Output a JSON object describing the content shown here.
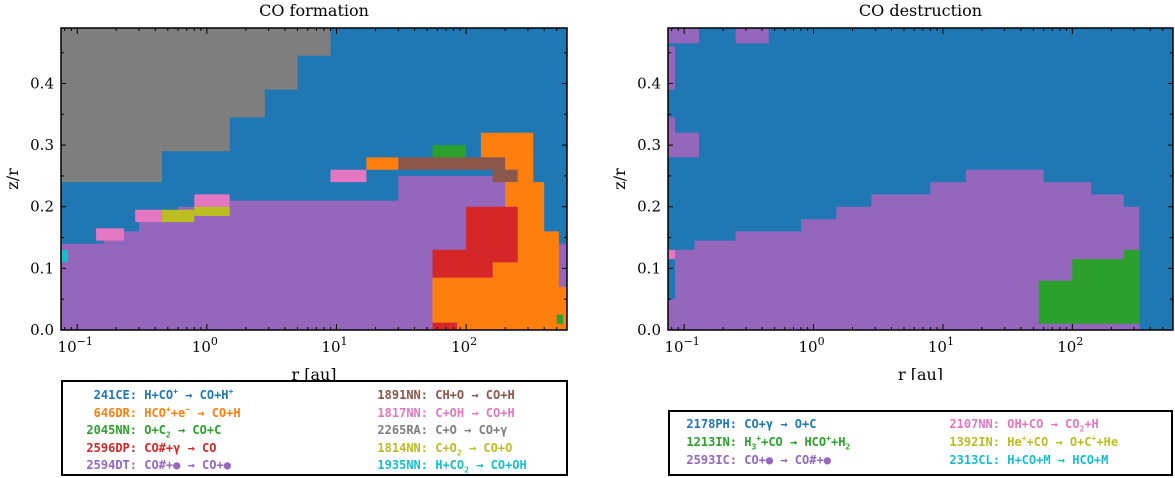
{
  "palette": {
    "blue": "#1f77b4",
    "orange": "#ff7f0e",
    "green": "#2ca02c",
    "red": "#d62728",
    "purple": "#9467bd",
    "brown": "#8c564b",
    "pink": "#e377c2",
    "gray": "#7f7f7f",
    "olive": "#bcbd22",
    "cyan": "#17becf"
  },
  "chart_data": [
    {
      "type": "heatmap",
      "title": "CO formation",
      "xlabel": "r [au]",
      "ylabel": "z/r",
      "xscale": "log",
      "xlim": [
        0.075,
        600
      ],
      "ylim": [
        0,
        0.49
      ],
      "xticks": [
        {
          "value": 0.1,
          "base": "10",
          "exp": "−1"
        },
        {
          "value": 1,
          "base": "10",
          "exp": "0"
        },
        {
          "value": 10,
          "base": "10",
          "exp": "1"
        },
        {
          "value": 100,
          "base": "10",
          "exp": "2"
        }
      ],
      "yticks": [
        "0.0",
        "0.1",
        "0.2",
        "0.3",
        "0.4"
      ],
      "background": "blue",
      "regions": [
        {
          "color": "gray",
          "poly": [
            [
              0.075,
              0.49
            ],
            [
              9,
              0.49
            ],
            [
              9,
              0.445
            ],
            [
              5,
              0.445
            ],
            [
              5,
              0.39
            ],
            [
              2.8,
              0.39
            ],
            [
              2.8,
              0.345
            ],
            [
              1.5,
              0.345
            ],
            [
              1.5,
              0.29
            ],
            [
              0.45,
              0.29
            ],
            [
              0.45,
              0.24
            ],
            [
              0.14,
              0.24
            ],
            [
              0.14,
              0.24
            ],
            [
              0.075,
              0.24
            ]
          ]
        },
        {
          "color": "purple",
          "poly": [
            [
              0.075,
              0
            ],
            [
              600,
              0
            ],
            [
              600,
              0.14
            ],
            [
              0.075,
              0.14
            ]
          ]
        },
        {
          "color": "purple",
          "poly": [
            [
              0.075,
              0.14
            ],
            [
              0.16,
              0.14
            ],
            [
              0.16,
              0.16
            ],
            [
              0.3,
              0.16
            ],
            [
              0.3,
              0.18
            ],
            [
              0.6,
              0.18
            ],
            [
              0.6,
              0.2
            ],
            [
              1.5,
              0.2
            ],
            [
              1.5,
              0.21
            ],
            [
              30,
              0.21
            ],
            [
              30,
              0.25
            ],
            [
              250,
              0.25
            ],
            [
              250,
              0.14
            ]
          ]
        },
        {
          "color": "red",
          "poly": [
            [
              55,
              0
            ],
            [
              200,
              0
            ],
            [
              200,
              0.2
            ],
            [
              160,
              0.2
            ],
            [
              160,
              0.13
            ],
            [
              55,
              0.13
            ]
          ]
        },
        {
          "color": "orange",
          "poly": [
            [
              55,
              0
            ],
            [
              600,
              0
            ],
            [
              600,
              0.07
            ],
            [
              520,
              0.07
            ],
            [
              520,
              0.16
            ],
            [
              400,
              0.16
            ],
            [
              400,
              0.24
            ],
            [
              330,
              0.24
            ],
            [
              330,
              0.32
            ],
            [
              130,
              0.32
            ],
            [
              130,
              0.28
            ],
            [
              200,
              0.28
            ],
            [
              200,
              0.2
            ],
            [
              250,
              0.2
            ],
            [
              250,
              0.11
            ],
            [
              160,
              0.11
            ],
            [
              160,
              0.085
            ],
            [
              55,
              0.085
            ]
          ]
        },
        {
          "color": "red",
          "poly": [
            [
              55,
              0.085
            ],
            [
              160,
              0.085
            ],
            [
              160,
              0.13
            ],
            [
              55,
              0.13
            ]
          ]
        },
        {
          "color": "red",
          "poly": [
            [
              100,
              0.13
            ],
            [
              160,
              0.13
            ],
            [
              160,
              0.2
            ],
            [
              100,
              0.2
            ]
          ]
        },
        {
          "color": "red",
          "poly": [
            [
              160,
              0.11
            ],
            [
              250,
              0.11
            ],
            [
              250,
              0.2
            ],
            [
              160,
              0.2
            ]
          ]
        },
        {
          "color": "red",
          "poly": [
            [
              55,
              0
            ],
            [
              85,
              0
            ],
            [
              85,
              0.012
            ],
            [
              55,
              0.012
            ]
          ]
        },
        {
          "color": "brown",
          "poly": [
            [
              30,
              0.26
            ],
            [
              200,
              0.26
            ],
            [
              200,
              0.28
            ],
            [
              30,
              0.28
            ]
          ]
        },
        {
          "color": "brown",
          "poly": [
            [
              160,
              0.24
            ],
            [
              250,
              0.24
            ],
            [
              250,
              0.26
            ],
            [
              160,
              0.26
            ]
          ]
        },
        {
          "color": "orange",
          "poly": [
            [
              17,
              0.26
            ],
            [
              30,
              0.26
            ],
            [
              30,
              0.28
            ],
            [
              17,
              0.28
            ]
          ]
        },
        {
          "color": "green",
          "poly": [
            [
              55,
              0.28
            ],
            [
              100,
              0.28
            ],
            [
              100,
              0.3
            ],
            [
              55,
              0.3
            ]
          ]
        },
        {
          "color": "pink",
          "poly": [
            [
              9,
              0.24
            ],
            [
              17,
              0.24
            ],
            [
              17,
              0.26
            ],
            [
              9,
              0.26
            ]
          ]
        },
        {
          "color": "pink",
          "poly": [
            [
              0.8,
              0.2
            ],
            [
              1.5,
              0.2
            ],
            [
              1.5,
              0.22
            ],
            [
              0.8,
              0.22
            ]
          ]
        },
        {
          "color": "pink",
          "poly": [
            [
              0.28,
              0.175
            ],
            [
              0.45,
              0.175
            ],
            [
              0.45,
              0.195
            ],
            [
              0.28,
              0.195
            ]
          ]
        },
        {
          "color": "pink",
          "poly": [
            [
              0.14,
              0.145
            ],
            [
              0.23,
              0.145
            ],
            [
              0.23,
              0.165
            ],
            [
              0.14,
              0.165
            ]
          ]
        },
        {
          "color": "olive",
          "poly": [
            [
              0.45,
              0.175
            ],
            [
              0.8,
              0.175
            ],
            [
              0.8,
              0.195
            ],
            [
              0.45,
              0.195
            ]
          ]
        },
        {
          "color": "olive",
          "poly": [
            [
              0.8,
              0.185
            ],
            [
              1.5,
              0.185
            ],
            [
              1.5,
              0.2
            ],
            [
              0.8,
              0.2
            ]
          ]
        },
        {
          "color": "cyan",
          "poly": [
            [
              0.075,
              0.11
            ],
            [
              0.085,
              0.11
            ],
            [
              0.085,
              0.13
            ],
            [
              0.075,
              0.13
            ]
          ]
        },
        {
          "color": "green",
          "poly": [
            [
              500,
              0.01
            ],
            [
              560,
              0.01
            ],
            [
              560,
              0.025
            ],
            [
              500,
              0.025
            ]
          ]
        }
      ],
      "legend": [
        {
          "id": "241",
          "type": "CE",
          "color": "blue",
          "html": "H+CO<sup>+</sup> → CO+H<sup>+</sup>"
        },
        {
          "id": "646",
          "type": "DR",
          "color": "orange",
          "html": "HCO<sup>+</sup>+e<sup>−</sup> → CO+H"
        },
        {
          "id": "2045",
          "type": "NN",
          "color": "green",
          "html": "O+C<sub>2</sub> → CO+C"
        },
        {
          "id": "2596",
          "type": "DP",
          "color": "red",
          "html": "CO#+γ → CO"
        },
        {
          "id": "2594",
          "type": "DT",
          "color": "purple",
          "html": "CO#+● → CO+●"
        },
        {
          "id": "1891",
          "type": "NN",
          "color": "brown",
          "html": "CH+O → CO+H"
        },
        {
          "id": "1817",
          "type": "NN",
          "color": "pink",
          "html": "C+OH → CO+H"
        },
        {
          "id": "2265",
          "type": "RA",
          "color": "gray",
          "html": "C+O → CO+γ"
        },
        {
          "id": "1814",
          "type": "NN",
          "color": "olive",
          "html": "C+O<sub>2</sub> → CO+O"
        },
        {
          "id": "1935",
          "type": "NN",
          "color": "cyan",
          "html": "H+CO<sub>2</sub> → CO+OH"
        }
      ]
    },
    {
      "type": "heatmap",
      "title": "CO destruction",
      "xlabel": "r [au]",
      "ylabel": "z/r",
      "xscale": "log",
      "xlim": [
        0.075,
        600
      ],
      "ylim": [
        0,
        0.49
      ],
      "xticks": [
        {
          "value": 0.1,
          "base": "10",
          "exp": "−1"
        },
        {
          "value": 1,
          "base": "10",
          "exp": "0"
        },
        {
          "value": 10,
          "base": "10",
          "exp": "1"
        },
        {
          "value": 100,
          "base": "10",
          "exp": "2"
        }
      ],
      "yticks": [
        "0.0",
        "0.1",
        "0.2",
        "0.3",
        "0.4"
      ],
      "background": "blue",
      "regions": [
        {
          "color": "purple",
          "poly": [
            [
              0.075,
              0
            ],
            [
              330,
              0
            ],
            [
              330,
              0.2
            ],
            [
              250,
              0.2
            ],
            [
              250,
              0.22
            ],
            [
              140,
              0.22
            ],
            [
              140,
              0.24
            ],
            [
              60,
              0.24
            ],
            [
              60,
              0.26
            ],
            [
              15,
              0.26
            ],
            [
              15,
              0.24
            ],
            [
              8,
              0.24
            ],
            [
              8,
              0.22
            ],
            [
              2.8,
              0.22
            ],
            [
              2.8,
              0.2
            ],
            [
              1.5,
              0.2
            ],
            [
              1.5,
              0.18
            ],
            [
              0.8,
              0.18
            ],
            [
              0.8,
              0.16
            ],
            [
              0.25,
              0.16
            ],
            [
              0.25,
              0.145
            ],
            [
              0.12,
              0.145
            ],
            [
              0.12,
              0.13
            ],
            [
              0.085,
              0.13
            ],
            [
              0.085,
              0.05
            ],
            [
              0.075,
              0.05
            ]
          ]
        },
        {
          "color": "green",
          "poly": [
            [
              55,
              0.01
            ],
            [
              330,
              0.01
            ],
            [
              330,
              0.13
            ],
            [
              250,
              0.13
            ],
            [
              250,
              0.115
            ],
            [
              100,
              0.115
            ],
            [
              100,
              0.08
            ],
            [
              55,
              0.08
            ]
          ]
        },
        {
          "color": "purple",
          "poly": [
            [
              0.075,
              0.28
            ],
            [
              0.13,
              0.28
            ],
            [
              0.13,
              0.32
            ],
            [
              0.085,
              0.32
            ],
            [
              0.085,
              0.345
            ],
            [
              0.075,
              0.345
            ]
          ]
        },
        {
          "color": "purple",
          "poly": [
            [
              0.075,
              0.39
            ],
            [
              0.085,
              0.39
            ],
            [
              0.085,
              0.46
            ],
            [
              0.075,
              0.46
            ]
          ]
        },
        {
          "color": "purple",
          "poly": [
            [
              0.075,
              0.465
            ],
            [
              0.13,
              0.465
            ],
            [
              0.13,
              0.49
            ],
            [
              0.075,
              0.49
            ]
          ]
        },
        {
          "color": "purple",
          "poly": [
            [
              0.25,
              0.465
            ],
            [
              0.45,
              0.465
            ],
            [
              0.45,
              0.49
            ],
            [
              0.25,
              0.49
            ]
          ]
        },
        {
          "color": "pink",
          "poly": [
            [
              0.075,
              0.115
            ],
            [
              0.085,
              0.115
            ],
            [
              0.085,
              0.13
            ],
            [
              0.075,
              0.13
            ]
          ]
        }
      ],
      "legend": [
        {
          "id": "2178",
          "type": "PH",
          "color": "blue",
          "html": "CO+γ → O+C"
        },
        {
          "id": "1213",
          "type": "IN",
          "color": "green",
          "html": "H<sub>3</sub><sup>+</sup>+CO → HCO<sup>+</sup>+H<sub>2</sub>"
        },
        {
          "id": "2593",
          "type": "IC",
          "color": "purple",
          "html": "CO+● → CO#+●"
        },
        {
          "id": "2107",
          "type": "NN",
          "color": "pink",
          "html": "OH+CO → CO<sub>2</sub>+H"
        },
        {
          "id": "1392",
          "type": "IN",
          "color": "olive",
          "html": "He<sup>+</sup>+CO → O+C<sup>+</sup>+He"
        },
        {
          "id": "2313",
          "type": "CL",
          "color": "cyan",
          "html": "H+CO+M → HCO+M"
        }
      ]
    }
  ]
}
